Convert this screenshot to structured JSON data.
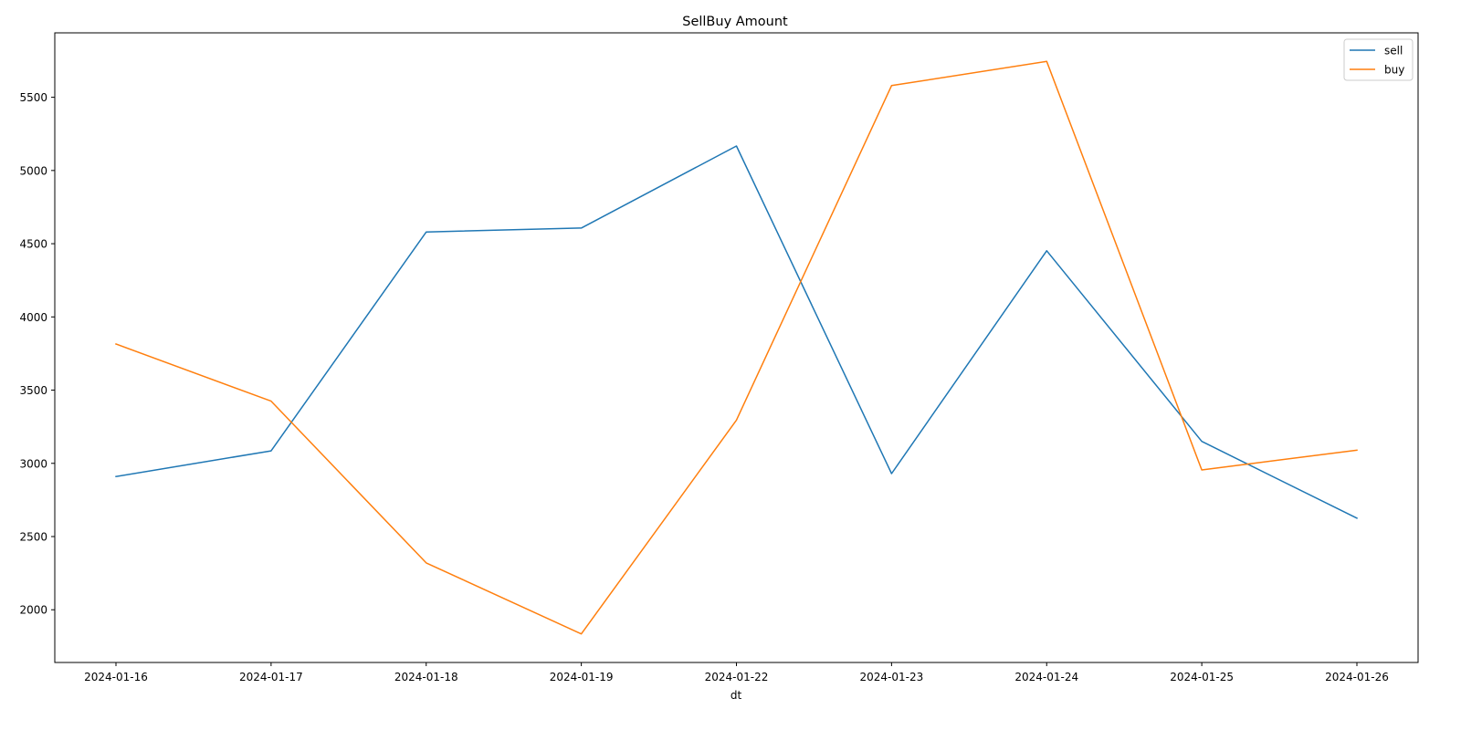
{
  "chart_data": {
    "type": "line",
    "title": "SellBuy Amount",
    "xlabel": "dt",
    "ylabel": "",
    "categories": [
      "2024-01-16",
      "2024-01-17",
      "2024-01-18",
      "2024-01-19",
      "2024-01-22",
      "2024-01-23",
      "2024-01-24",
      "2024-01-25",
      "2024-01-26"
    ],
    "yticks": [
      2000,
      2500,
      3000,
      3500,
      4000,
      4500,
      5000,
      5500
    ],
    "ylim": [
      1640,
      5940
    ],
    "grid": false,
    "legend_position": "top-right",
    "series": [
      {
        "name": "sell",
        "color": "#1f77b4",
        "values": [
          2910,
          3085,
          4580,
          4607,
          5167,
          2930,
          4452,
          3150,
          2625
        ]
      },
      {
        "name": "buy",
        "color": "#ff7f0e",
        "values": [
          3815,
          3425,
          2320,
          1835,
          3295,
          5580,
          5745,
          2955,
          3090
        ]
      }
    ]
  }
}
